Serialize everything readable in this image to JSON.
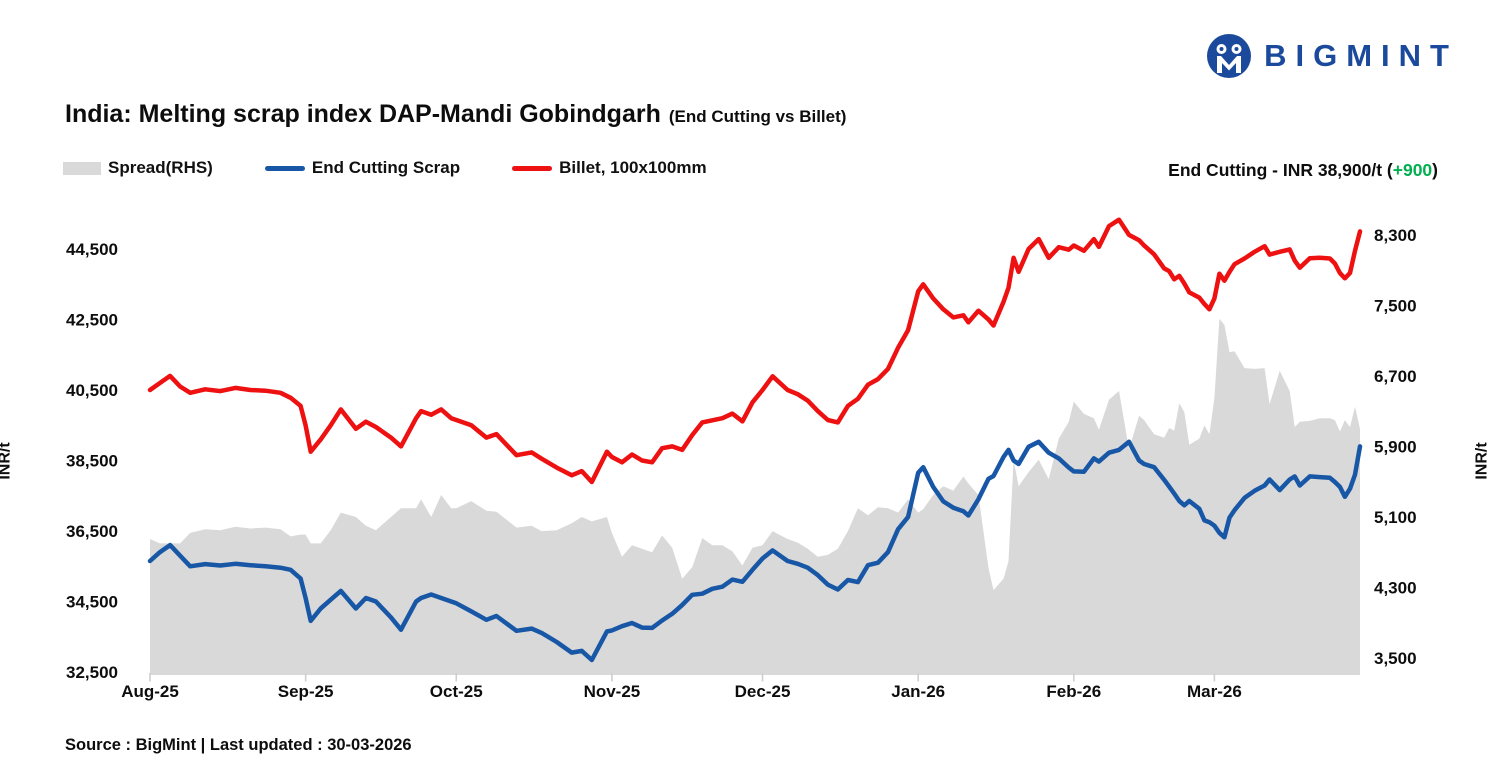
{
  "logo": {
    "brand": "BIGMINT"
  },
  "title": {
    "main": "India: Melting scrap index DAP-Mandi Gobindgarh",
    "sub": "(End Cutting vs Billet)"
  },
  "legend": {
    "spread": {
      "label": "Spread(RHS)",
      "color": "#d9d9d9"
    },
    "scrap": {
      "label": "End Cutting Scrap",
      "color": "#1857a6"
    },
    "billet": {
      "label": "Billet, 100x100mm",
      "color": "#ee1111"
    }
  },
  "annotation": {
    "label": "End Cutting - INR 38,900/t (",
    "delta": "+900",
    "suffix": ")"
  },
  "source": "Source : BigMint | Last updated : 30-03-2026",
  "chart_data": {
    "type": "line",
    "title": "India: Melting scrap index DAP-Mandi Gobindgarh (End Cutting vs Billet)",
    "x_axis": {
      "tick_labels": [
        "Aug-25",
        "Sep-25",
        "Oct-25",
        "Nov-25",
        "Dec-25",
        "Jan-26",
        "Feb-26",
        "Mar-26"
      ],
      "tick_days": [
        0,
        31,
        61,
        92,
        122,
        153,
        184,
        212
      ],
      "total_days": 241
    },
    "left_axis": {
      "title": "INR/t",
      "ticks": [
        32500,
        34500,
        36500,
        38500,
        40500,
        42500,
        44500
      ],
      "range": [
        32500,
        45700
      ]
    },
    "right_axis": {
      "title": "INR/t",
      "ticks": [
        3500,
        4300,
        5100,
        5900,
        6700,
        7500,
        8300
      ],
      "range": [
        3500,
        8450
      ]
    },
    "grid": false,
    "legend_position": "top-left",
    "spread_series": {
      "name": "Spread(RHS)",
      "axis": "right",
      "style": "area",
      "color": "#d9d9d9",
      "derivation": "Billet minus End Cutting Scrap, plotted on right axis"
    },
    "days": [
      0,
      2,
      4,
      6,
      8,
      11,
      14,
      17,
      20,
      23,
      26,
      28,
      30,
      31,
      32,
      34,
      36,
      38,
      41,
      43,
      45,
      48,
      50,
      53,
      54,
      56,
      58,
      60,
      61,
      64,
      67,
      69,
      73,
      76,
      78,
      81,
      84,
      86,
      88,
      91,
      92,
      94,
      96,
      98,
      100,
      102,
      104,
      106,
      108,
      110,
      112,
      114,
      116,
      118,
      120,
      122,
      124,
      127,
      129,
      131,
      133,
      135,
      137,
      139,
      141,
      143,
      145,
      147,
      149,
      151,
      153,
      154,
      156,
      158,
      160,
      162,
      163,
      165,
      167,
      168,
      170,
      171,
      172,
      173,
      175,
      177,
      179,
      181,
      183,
      184,
      186,
      188,
      189,
      191,
      193,
      195,
      197,
      198,
      200,
      202,
      203,
      204,
      205,
      206,
      207,
      209,
      210,
      211,
      212,
      213,
      214,
      215,
      216,
      218,
      220,
      222,
      223,
      225,
      227,
      228,
      229,
      231,
      233,
      235,
      236,
      237,
      238,
      239,
      240,
      241
    ],
    "series": [
      {
        "id": "billet",
        "name": "Billet, 100x100mm",
        "axis": "left",
        "color": "#ee1111",
        "end_value": 45000,
        "values": [
          40500,
          40700,
          40900,
          40600,
          40420,
          40520,
          40470,
          40560,
          40500,
          40480,
          40420,
          40280,
          40050,
          39500,
          38750,
          39100,
          39500,
          39950,
          39400,
          39600,
          39450,
          39150,
          38900,
          39700,
          39900,
          39800,
          39950,
          39700,
          39650,
          39500,
          39150,
          39250,
          38650,
          38730,
          38550,
          38300,
          38080,
          38200,
          37890,
          38750,
          38600,
          38450,
          38670,
          38500,
          38450,
          38850,
          38900,
          38800,
          39220,
          39580,
          39640,
          39700,
          39830,
          39610,
          40150,
          40500,
          40890,
          40500,
          40380,
          40200,
          39900,
          39650,
          39580,
          40050,
          40250,
          40650,
          40810,
          41100,
          41700,
          42200,
          43300,
          43500,
          43100,
          42790,
          42560,
          42620,
          42420,
          42750,
          42500,
          42330,
          43000,
          43400,
          44250,
          43850,
          44500,
          44780,
          44250,
          44550,
          44480,
          44600,
          44450,
          44780,
          44560,
          45150,
          45330,
          44900,
          44750,
          44600,
          44350,
          43950,
          43870,
          43640,
          43740,
          43520,
          43270,
          43120,
          42940,
          42790,
          43100,
          43800,
          43600,
          43850,
          44070,
          44230,
          44420,
          44580,
          44340,
          44420,
          44490,
          44170,
          43970,
          44240,
          44250,
          44230,
          44090,
          43820,
          43670,
          43820,
          44450,
          45000
        ]
      },
      {
        "id": "scrap",
        "name": "End Cutting Scrap",
        "axis": "left",
        "color": "#1857a6",
        "end_value": 38900,
        "end_change": 900,
        "values": [
          35650,
          35900,
          36100,
          35800,
          35500,
          35560,
          35520,
          35570,
          35530,
          35500,
          35460,
          35400,
          35150,
          34600,
          33950,
          34300,
          34550,
          34800,
          34300,
          34600,
          34500,
          34050,
          33700,
          34500,
          34600,
          34700,
          34600,
          34500,
          34450,
          34220,
          33980,
          34090,
          33670,
          33730,
          33610,
          33350,
          33050,
          33100,
          32840,
          33650,
          33680,
          33800,
          33890,
          33760,
          33750,
          33960,
          34150,
          34400,
          34690,
          34720,
          34860,
          34920,
          35120,
          35060,
          35400,
          35720,
          35950,
          35650,
          35570,
          35460,
          35250,
          34980,
          34840,
          35110,
          35050,
          35530,
          35600,
          35900,
          36550,
          36900,
          38150,
          38310,
          37750,
          37340,
          37160,
          37060,
          36940,
          37400,
          37980,
          38060,
          38600,
          38800,
          38500,
          38400,
          38890,
          39030,
          38720,
          38560,
          38300,
          38190,
          38180,
          38560,
          38470,
          38720,
          38800,
          39030,
          38500,
          38400,
          38310,
          37950,
          37760,
          37560,
          37350,
          37230,
          37350,
          37130,
          36800,
          36750,
          36650,
          36450,
          36320,
          36880,
          37090,
          37440,
          37640,
          37790,
          37960,
          37660,
          37960,
          38050,
          37790,
          38050,
          38030,
          38010,
          37890,
          37750,
          37470,
          37700,
          38100,
          38900
        ]
      }
    ]
  }
}
